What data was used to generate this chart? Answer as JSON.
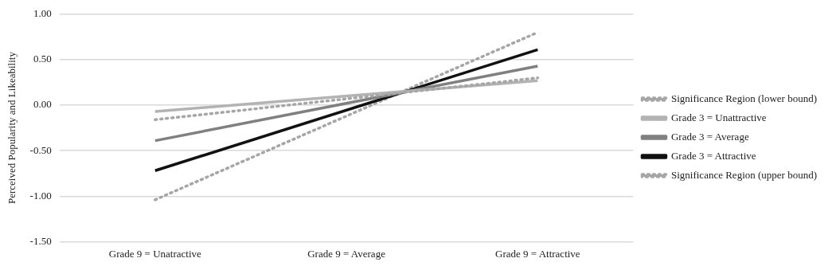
{
  "chart_data": {
    "type": "line",
    "ylabel": "Perceived Popularity and Likeability",
    "categories": [
      "Grade 9 = Unatractive",
      "Grade 9 = Average",
      "Grade 9 = Attractive"
    ],
    "series": [
      {
        "name": "Significance Region (lower bound)",
        "color": "#a6a6a6",
        "line_style": "dotted",
        "values": [
          -0.16,
          null,
          0.3
        ]
      },
      {
        "name": "Grade 3 = Unattractive",
        "color": "#b3b3b3",
        "line_style": "solid",
        "values": [
          -0.07,
          null,
          0.27
        ]
      },
      {
        "name": "Grade 3 = Average",
        "color": "#808080",
        "line_style": "solid",
        "values": [
          -0.39,
          null,
          0.43
        ]
      },
      {
        "name": "Grade 3 = Attractive",
        "color": "#111111",
        "line_style": "solid",
        "values": [
          -0.72,
          null,
          0.61
        ]
      },
      {
        "name": "Significance Region (upper bound)",
        "color": "#a6a6a6",
        "line_style": "dotted",
        "values": [
          -1.04,
          null,
          0.8
        ]
      }
    ],
    "ylim": [
      -1.5,
      1.0
    ],
    "yticks": [
      {
        "value": -1.5,
        "label": "-1.50"
      },
      {
        "value": -1.0,
        "label": "-1.00"
      },
      {
        "value": -0.5,
        "label": "-0.50"
      },
      {
        "value": 0,
        "label": "0.00"
      },
      {
        "value": 0.5,
        "label": "0.50"
      },
      {
        "value": 1.0,
        "label": "1.00"
      }
    ],
    "grid": "y",
    "legend": "right",
    "marker": "none"
  }
}
